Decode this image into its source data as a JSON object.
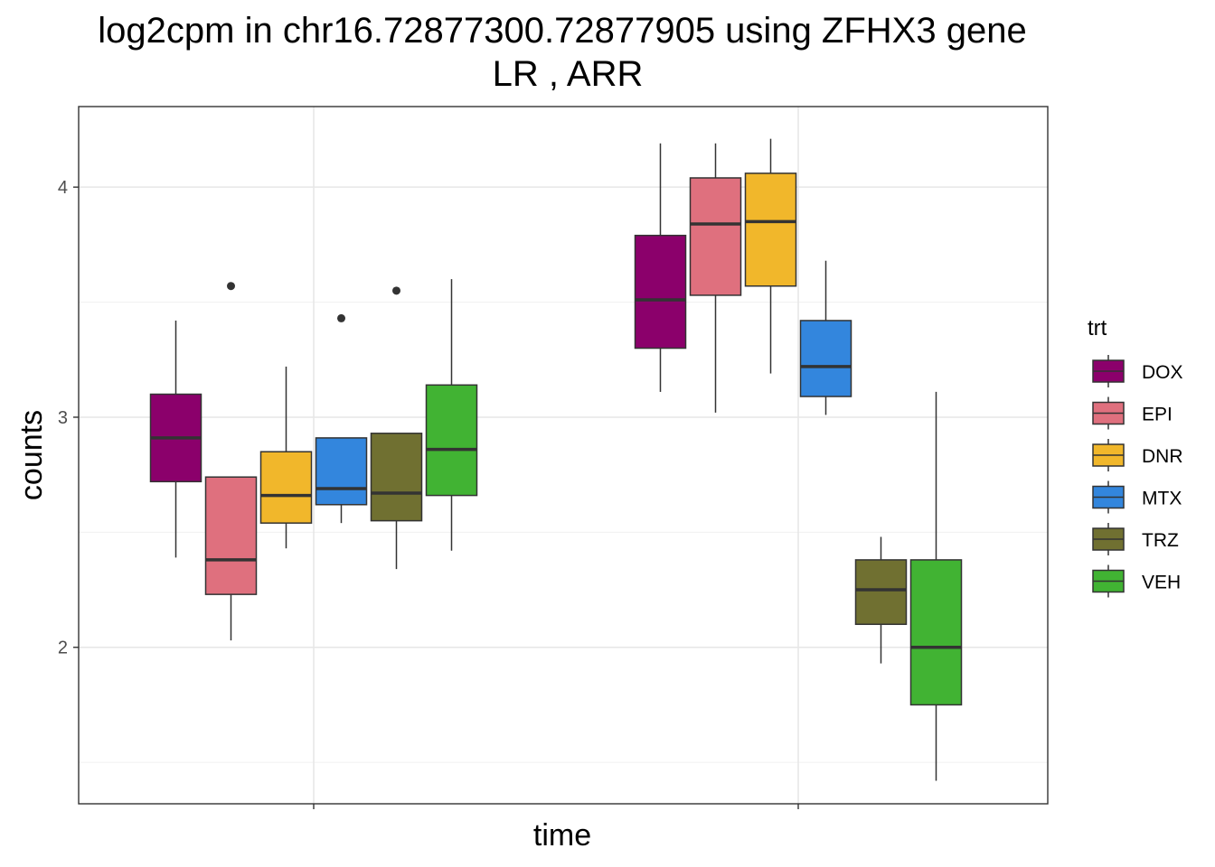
{
  "chart_data": {
    "type": "boxplot",
    "title": "log2cpm in  chr16.72877300.72877905  using  ZFHX3  gene",
    "subtitle": "LR ,  ARR",
    "xlabel": "time",
    "ylabel": "counts",
    "ylim": [
      1.32,
      4.35
    ],
    "y_ticks": [
      2,
      3,
      4
    ],
    "y_minor_ticks": [
      1.5,
      2.5,
      3.5
    ],
    "grid": true,
    "legend": {
      "title": "trt",
      "placement": "right"
    },
    "groups": [
      "",
      ""
    ],
    "series": [
      {
        "name": "DOX",
        "color": "#8B006B"
      },
      {
        "name": "EPI",
        "color": "#DF707E"
      },
      {
        "name": "DNR",
        "color": "#F1B72B"
      },
      {
        "name": "MTX",
        "color": "#3386DD"
      },
      {
        "name": "TRZ",
        "color": "#707031"
      },
      {
        "name": "VEH",
        "color": "#41B333"
      }
    ],
    "boxes": [
      {
        "group": 0,
        "trt": "DOX",
        "whisker_low": 2.39,
        "q1": 2.72,
        "median": 2.91,
        "q3": 3.1,
        "whisker_high": 3.42,
        "outliers": []
      },
      {
        "group": 0,
        "trt": "EPI",
        "whisker_low": 2.03,
        "q1": 2.23,
        "median": 2.38,
        "q3": 2.74,
        "whisker_high": 2.74,
        "outliers": [
          3.57
        ]
      },
      {
        "group": 0,
        "trt": "DNR",
        "whisker_low": 2.43,
        "q1": 2.54,
        "median": 2.66,
        "q3": 2.85,
        "whisker_high": 3.22,
        "outliers": []
      },
      {
        "group": 0,
        "trt": "MTX",
        "whisker_low": 2.54,
        "q1": 2.62,
        "median": 2.69,
        "q3": 2.91,
        "whisker_high": 2.91,
        "outliers": [
          3.43
        ]
      },
      {
        "group": 0,
        "trt": "TRZ",
        "whisker_low": 2.34,
        "q1": 2.55,
        "median": 2.67,
        "q3": 2.93,
        "whisker_high": 2.93,
        "outliers": [
          3.55
        ]
      },
      {
        "group": 0,
        "trt": "VEH",
        "whisker_low": 2.42,
        "q1": 2.66,
        "median": 2.86,
        "q3": 3.14,
        "whisker_high": 3.6,
        "outliers": []
      },
      {
        "group": 1,
        "trt": "DOX",
        "whisker_low": 3.11,
        "q1": 3.3,
        "median": 3.51,
        "q3": 3.79,
        "whisker_high": 4.19,
        "outliers": []
      },
      {
        "group": 1,
        "trt": "EPI",
        "whisker_low": 3.02,
        "q1": 3.53,
        "median": 3.84,
        "q3": 4.04,
        "whisker_high": 4.19,
        "outliers": []
      },
      {
        "group": 1,
        "trt": "DNR",
        "whisker_low": 3.19,
        "q1": 3.57,
        "median": 3.85,
        "q3": 4.06,
        "whisker_high": 4.21,
        "outliers": []
      },
      {
        "group": 1,
        "trt": "MTX",
        "whisker_low": 3.01,
        "q1": 3.09,
        "median": 3.22,
        "q3": 3.42,
        "whisker_high": 3.68,
        "outliers": []
      },
      {
        "group": 1,
        "trt": "TRZ",
        "whisker_low": 1.93,
        "q1": 2.1,
        "median": 2.25,
        "q3": 2.38,
        "whisker_high": 2.48,
        "outliers": []
      },
      {
        "group": 1,
        "trt": "VEH",
        "whisker_low": 1.42,
        "q1": 1.75,
        "median": 2.0,
        "q3": 2.38,
        "whisker_high": 3.11,
        "outliers": []
      }
    ]
  }
}
